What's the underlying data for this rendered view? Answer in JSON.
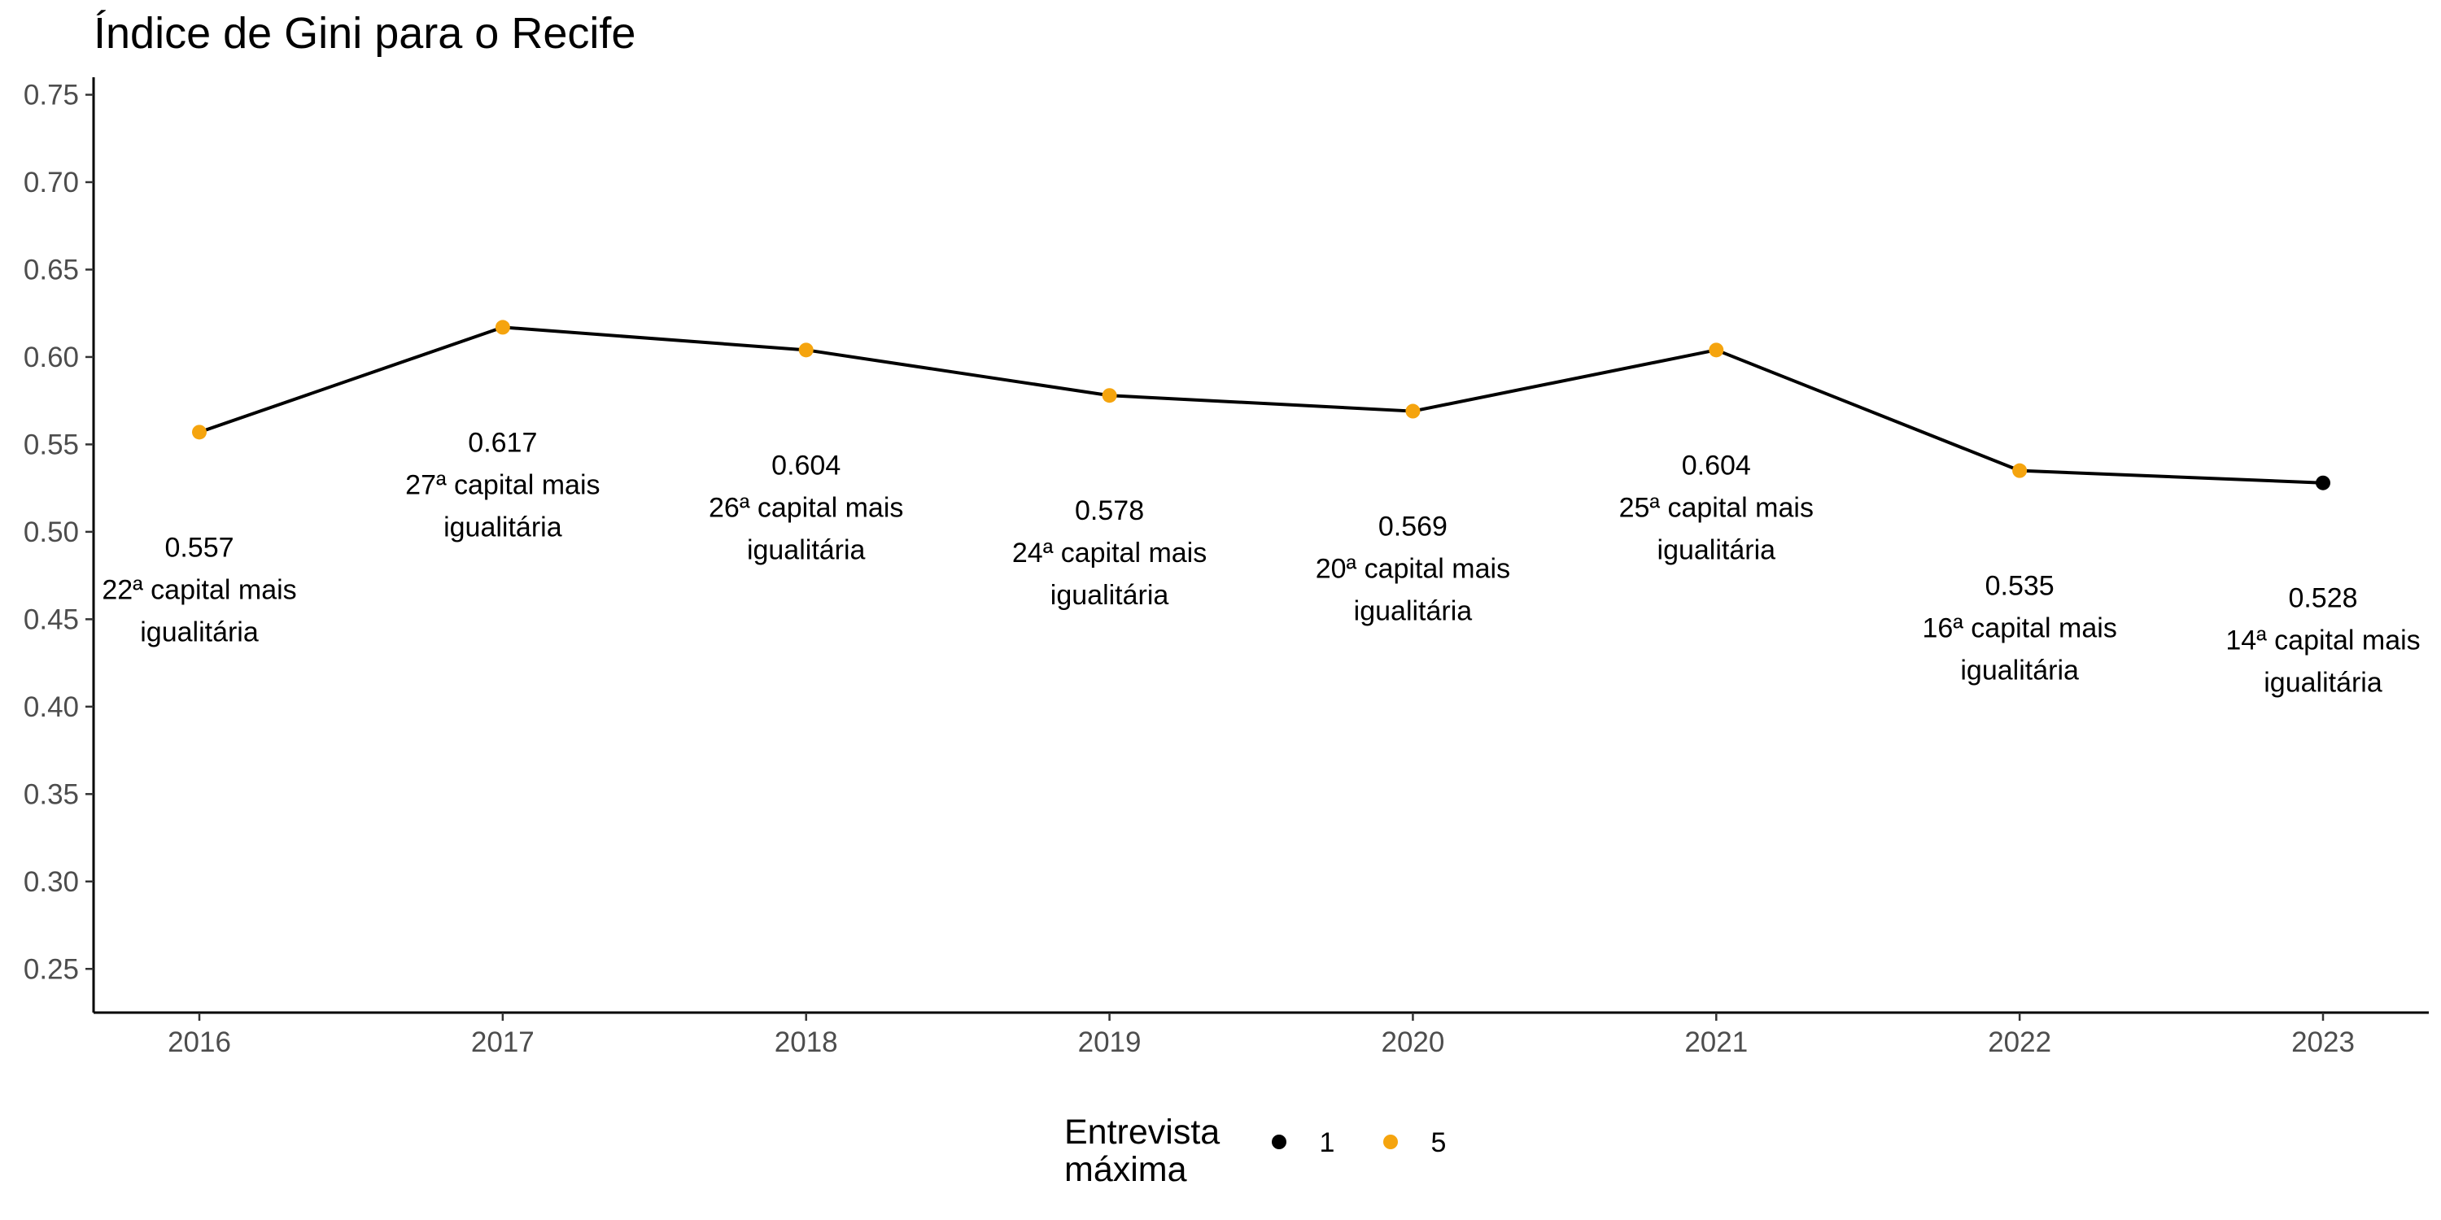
{
  "chart_data": {
    "type": "line",
    "title": "Índice de Gini para o Recife",
    "xlabel": "",
    "ylabel": "",
    "x": [
      2016,
      2017,
      2018,
      2019,
      2020,
      2021,
      2022,
      2023
    ],
    "xtick_labels": [
      "2016",
      "2017",
      "2018",
      "2019",
      "2020",
      "2021",
      "2022",
      "2023"
    ],
    "y": [
      0.557,
      0.617,
      0.604,
      0.578,
      0.569,
      0.604,
      0.535,
      0.528
    ],
    "max_interview": [
      5,
      5,
      5,
      5,
      5,
      5,
      5,
      1
    ],
    "annotations": [
      {
        "value": "0.557",
        "rank": "22ª capital mais",
        "rank2": "igualitária"
      },
      {
        "value": "0.617",
        "rank": "27ª capital mais",
        "rank2": "igualitária"
      },
      {
        "value": "0.604",
        "rank": "26ª capital mais",
        "rank2": "igualitária"
      },
      {
        "value": "0.578",
        "rank": "24ª capital mais",
        "rank2": "igualitária"
      },
      {
        "value": "0.569",
        "rank": "20ª capital mais",
        "rank2": "igualitária"
      },
      {
        "value": "0.604",
        "rank": "25ª capital mais",
        "rank2": "igualitária"
      },
      {
        "value": "0.535",
        "rank": "16ª capital mais",
        "rank2": "igualitária"
      },
      {
        "value": "0.528",
        "rank": "14ª capital mais",
        "rank2": "igualitária"
      }
    ],
    "ylim": [
      0.225,
      0.76
    ],
    "yticks": [
      0.25,
      0.3,
      0.35,
      0.4,
      0.45,
      0.5,
      0.55,
      0.6,
      0.65,
      0.7,
      0.75
    ],
    "ytick_labels": [
      "0.25",
      "0.30",
      "0.35",
      "0.40",
      "0.45",
      "0.50",
      "0.55",
      "0.60",
      "0.65",
      "0.70",
      "0.75"
    ],
    "grid": false,
    "line_color": "#000000",
    "legend": {
      "title_line1": "Entrevista",
      "title_line2": "máxima",
      "placement": "bottom",
      "entries": [
        {
          "label": "1",
          "color": "#000000"
        },
        {
          "label": "5",
          "color": "#F5A40E"
        }
      ]
    }
  }
}
